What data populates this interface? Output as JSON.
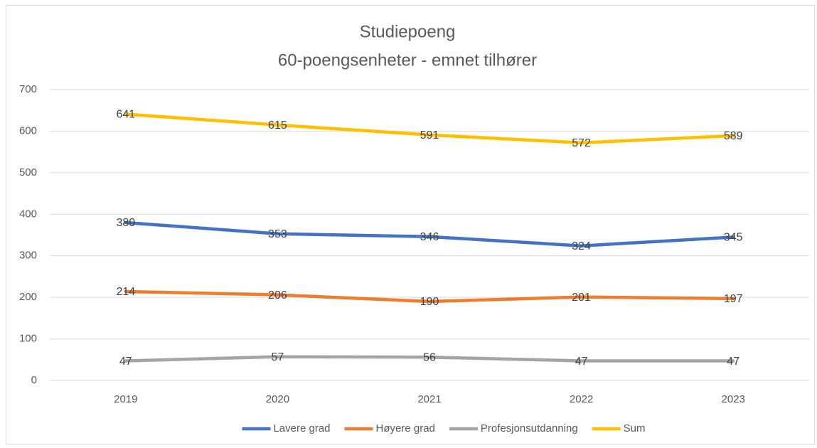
{
  "chart_data": {
    "type": "line",
    "title": "Studiepoeng",
    "subtitle": "60-poengsenheter - emnet tilhører",
    "categories": [
      "2019",
      "2020",
      "2021",
      "2022",
      "2023"
    ],
    "series": [
      {
        "name": "Lavere grad",
        "color": "#4472c4",
        "values": [
          380,
          353,
          346,
          324,
          345
        ]
      },
      {
        "name": "Høyere grad",
        "color": "#ed7d31",
        "values": [
          214,
          206,
          190,
          201,
          197
        ]
      },
      {
        "name": "Profesjonsutdanning",
        "color": "#a5a5a5",
        "values": [
          47,
          57,
          56,
          47,
          47
        ]
      },
      {
        "name": "Sum",
        "color": "#ffc000",
        "values": [
          641,
          615,
          591,
          572,
          589
        ]
      }
    ],
    "ylim": [
      0,
      700
    ],
    "yticks": [
      0,
      100,
      200,
      300,
      400,
      500,
      600,
      700
    ],
    "grid": true,
    "legend": "bottom",
    "data_labels": true
  }
}
